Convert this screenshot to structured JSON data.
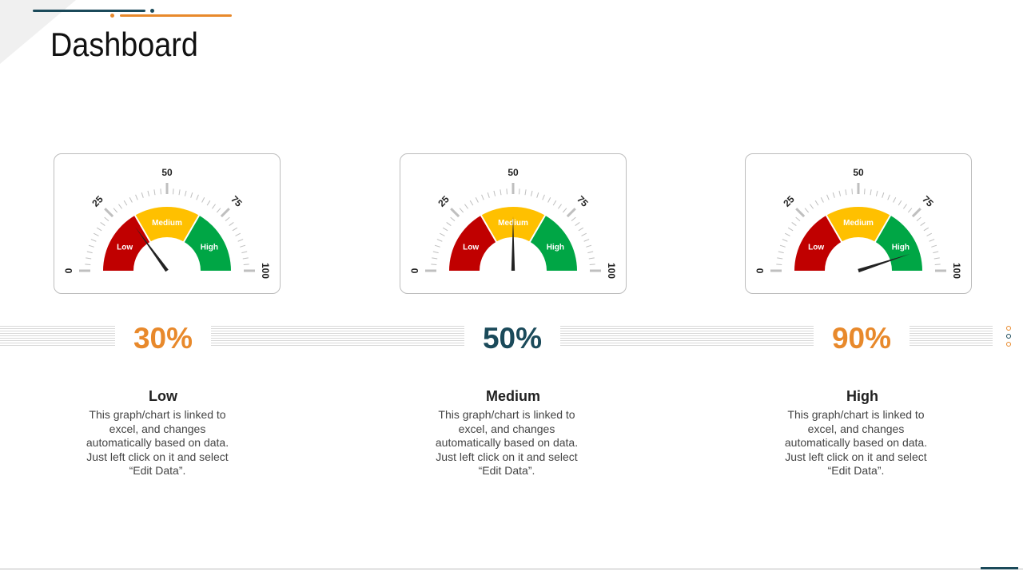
{
  "page": {
    "title": "Dashboard"
  },
  "colors": {
    "accent_dark": "#1b4a5a",
    "accent_orange": "#e8892b",
    "zone_low": "#c00000",
    "zone_medium": "#ffc000",
    "zone_high": "#00a645",
    "needle": "#222222",
    "ticks": "#bfbfbf"
  },
  "chart_data": [
    {
      "type": "gauge",
      "value": 30,
      "range": [
        0,
        100
      ],
      "tick_labels": [
        "0",
        "25",
        "50",
        "75",
        "100"
      ],
      "zones": [
        {
          "label": "Low",
          "from": 0,
          "to": 33.3
        },
        {
          "label": "Medium",
          "from": 33.3,
          "to": 66.7
        },
        {
          "label": "High",
          "from": 66.7,
          "to": 100
        }
      ],
      "value_label": "30%",
      "value_color": "#e8892b",
      "title": "Low",
      "description": "This graph/chart is linked to excel, and changes automatically based on data. Just left click on it and select “Edit Data”."
    },
    {
      "type": "gauge",
      "value": 50,
      "range": [
        0,
        100
      ],
      "tick_labels": [
        "0",
        "25",
        "50",
        "75",
        "100"
      ],
      "zones": [
        {
          "label": "Low",
          "from": 0,
          "to": 33.3
        },
        {
          "label": "Medium",
          "from": 33.3,
          "to": 66.7
        },
        {
          "label": "High",
          "from": 66.7,
          "to": 100
        }
      ],
      "value_label": "50%",
      "value_color": "#1b4a5a",
      "title": "Medium",
      "description": "This graph/chart is linked to excel, and changes automatically based on data. Just left click on it and select “Edit Data”."
    },
    {
      "type": "gauge",
      "value": 90,
      "range": [
        0,
        100
      ],
      "tick_labels": [
        "0",
        "25",
        "50",
        "75",
        "100"
      ],
      "zones": [
        {
          "label": "Low",
          "from": 0,
          "to": 33.3
        },
        {
          "label": "Medium",
          "from": 33.3,
          "to": 66.7
        },
        {
          "label": "High",
          "from": 66.7,
          "to": 100
        }
      ],
      "value_label": "90%",
      "value_color": "#e8892b",
      "title": "High",
      "description": "This graph/chart is linked to excel, and changes automatically based on data. Just left click on it and select “Edit Data”."
    }
  ]
}
